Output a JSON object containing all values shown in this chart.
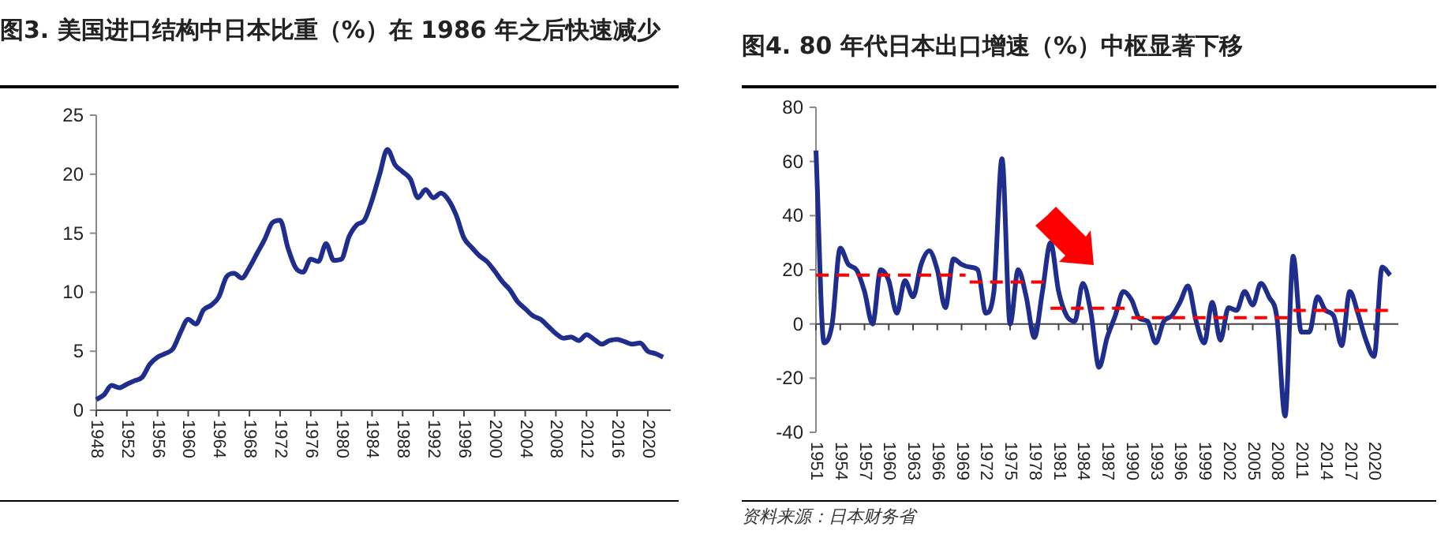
{
  "chart_data": [
    {
      "type": "line",
      "title": "图3. 美国进口结构中日本比重（%）在 1986 年之后快速减少",
      "x": [
        1948,
        1949,
        1950,
        1951,
        1952,
        1953,
        1954,
        1955,
        1956,
        1957,
        1958,
        1959,
        1960,
        1961,
        1962,
        1963,
        1964,
        1965,
        1966,
        1967,
        1968,
        1969,
        1970,
        1971,
        1972,
        1973,
        1974,
        1975,
        1976,
        1977,
        1978,
        1979,
        1980,
        1981,
        1982,
        1983,
        1984,
        1985,
        1986,
        1987,
        1988,
        1989,
        1990,
        1991,
        1992,
        1993,
        1994,
        1995,
        1996,
        1997,
        1998,
        1999,
        2000,
        2001,
        2002,
        2003,
        2004,
        2005,
        2006,
        2007,
        2008,
        2009,
        2010,
        2011,
        2012,
        2013,
        2014,
        2015,
        2016,
        2017,
        2018,
        2019,
        2020,
        2021,
        2022
      ],
      "series": [
        {
          "color": "#1f2d8c",
          "values": [
            0.9,
            1.3,
            2.1,
            1.9,
            2.2,
            2.5,
            2.8,
            3.9,
            4.5,
            4.8,
            5.2,
            6.6,
            7.7,
            7.3,
            8.5,
            8.9,
            9.6,
            11.3,
            11.6,
            11.2,
            12.1,
            13.3,
            14.5,
            15.9,
            16.1,
            13.8,
            12.1,
            11.7,
            12.8,
            12.6,
            14.1,
            12.7,
            12.8,
            14.7,
            15.7,
            16.1,
            17.8,
            20.0,
            22.1,
            20.8,
            20.2,
            19.6,
            18.0,
            18.7,
            18.0,
            18.4,
            17.8,
            16.5,
            14.6,
            13.8,
            13.1,
            12.6,
            11.8,
            10.9,
            10.2,
            9.2,
            8.6,
            8.0,
            7.7,
            7.1,
            6.5,
            6.1,
            6.2,
            5.9,
            6.4,
            6.0,
            5.6,
            5.9,
            6.0,
            5.8,
            5.6,
            5.7,
            5.0,
            4.8,
            4.5
          ]
        }
      ],
      "xlim": [
        1948,
        2023
      ],
      "xticks": [
        1948,
        1952,
        1956,
        1960,
        1964,
        1968,
        1972,
        1976,
        1980,
        1984,
        1988,
        1992,
        1996,
        2000,
        2004,
        2008,
        2012,
        2016,
        2020
      ],
      "ylim": [
        0,
        25
      ],
      "yticks": [
        0,
        5,
        10,
        15,
        20,
        25
      ]
    },
    {
      "type": "line",
      "title": "图4. 80 年代日本出口增速（%）中枢显著下移",
      "x": [
        1951,
        1952,
        1953,
        1954,
        1955,
        1956,
        1957,
        1958,
        1959,
        1960,
        1961,
        1962,
        1963,
        1964,
        1965,
        1966,
        1967,
        1968,
        1969,
        1970,
        1971,
        1972,
        1973,
        1974,
        1975,
        1976,
        1977,
        1978,
        1979,
        1980,
        1981,
        1982,
        1983,
        1984,
        1985,
        1986,
        1987,
        1988,
        1989,
        1990,
        1991,
        1992,
        1993,
        1994,
        1995,
        1996,
        1997,
        1998,
        1999,
        2000,
        2001,
        2002,
        2003,
        2004,
        2005,
        2006,
        2007,
        2008,
        2009,
        2010,
        2011,
        2012,
        2013,
        2014,
        2015,
        2016,
        2017,
        2018,
        2019,
        2020,
        2021,
        2022
      ],
      "series": [
        {
          "color": "#1f2d8c",
          "values": [
            64,
            -7,
            0,
            28,
            22,
            20,
            12,
            0,
            20,
            16,
            4,
            16,
            10,
            22,
            27,
            20,
            6,
            24,
            22,
            21,
            20,
            4,
            12,
            61,
            0,
            20,
            10,
            -5,
            12,
            30,
            12,
            3,
            1,
            15,
            4,
            -16,
            -5,
            3,
            12,
            9,
            2,
            1,
            -7,
            1,
            3,
            8,
            14,
            1,
            -7,
            8,
            -6,
            6,
            5,
            12,
            7,
            15,
            10,
            2,
            -34,
            25,
            -3,
            -3,
            10,
            5,
            3,
            -8,
            12,
            4,
            -6,
            -12,
            21,
            18
          ]
        },
        {
          "color": "#ff0000",
          "line_style": "dashed",
          "x": [
            1951,
            1969.5,
            null,
            1970,
            1979.5,
            null,
            1980,
            1989.5,
            null,
            1990,
            2009.5,
            null,
            2010,
            2022
          ],
          "values": [
            18,
            18,
            null,
            15.5,
            15.5,
            null,
            5.8,
            5.8,
            null,
            2.3,
            2.3,
            null,
            5,
            5
          ]
        }
      ],
      "xlim": [
        1951,
        2023
      ],
      "xticks": [
        1951,
        1954,
        1957,
        1960,
        1963,
        1966,
        1969,
        1972,
        1975,
        1978,
        1981,
        1984,
        1987,
        1990,
        1993,
        1996,
        1999,
        2002,
        2005,
        2008,
        2011,
        2014,
        2017,
        2020
      ],
      "ylim": [
        -40,
        80
      ],
      "yticks": [
        -40,
        -20,
        0,
        20,
        40,
        60,
        80
      ],
      "annotations": [
        "资料来源：日本财务省"
      ]
    }
  ]
}
